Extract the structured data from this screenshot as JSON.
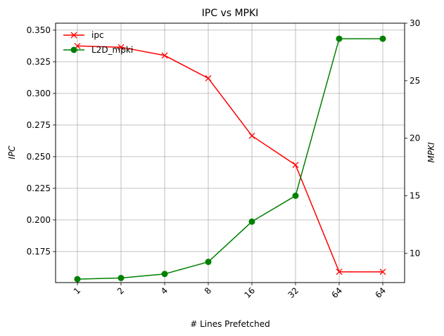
{
  "chart_data": {
    "type": "line",
    "title": "IPC vs MPKI",
    "xlabel": "# Lines Prefetched",
    "ylabel_left": "IPC",
    "ylabel_right": "MPKI",
    "categories": [
      "1",
      "2",
      "4",
      "8",
      "16",
      "32",
      "64",
      "64"
    ],
    "y_left_ticks": [
      "0.175",
      "0.200",
      "0.225",
      "0.250",
      "0.275",
      "0.300",
      "0.325",
      "0.350"
    ],
    "y_right_ticks": [
      "10",
      "15",
      "20",
      "25",
      "30"
    ],
    "ylim_left": [
      0.1505,
      0.3555
    ],
    "ylim_right": [
      7.45,
      30.0
    ],
    "grid": true,
    "legend_position": "upper-left",
    "series": [
      {
        "name": "ipc",
        "axis": "left",
        "color": "#ff0000",
        "marker": "x",
        "values": [
          0.3375,
          0.3365,
          0.33,
          0.312,
          0.2665,
          0.2435,
          0.159,
          0.159
        ]
      },
      {
        "name": "L2D_mpki",
        "axis": "right",
        "color": "#008000",
        "marker": "circle",
        "values": [
          7.75,
          7.85,
          8.2,
          9.25,
          12.75,
          15.0,
          28.65,
          28.65
        ]
      }
    ]
  }
}
